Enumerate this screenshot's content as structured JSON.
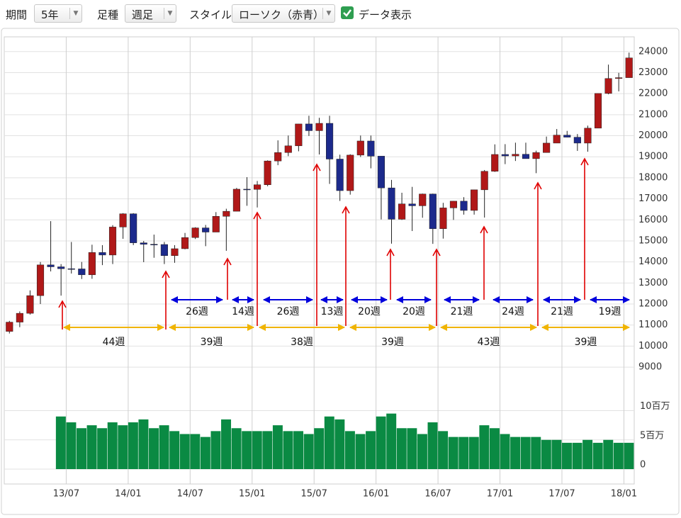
{
  "toolbar": {
    "period_label": "期間",
    "period_value": "5年",
    "bar_label": "足種",
    "bar_value": "週足",
    "style_label": "スタイル",
    "style_value": "ローソク（赤青）",
    "data_display_label": "データ表示"
  },
  "chart_data": {
    "type": "candlestick",
    "x": [
      "13/01",
      "13/02",
      "13/03",
      "13/04",
      "13/05",
      "13/06",
      "13/07",
      "13/08",
      "13/09",
      "13/10",
      "13/11",
      "13/12",
      "14/01",
      "14/02",
      "14/03",
      "14/04",
      "14/05",
      "14/06",
      "14/07",
      "14/08",
      "14/09",
      "14/10",
      "14/11",
      "14/12",
      "15/01",
      "15/02",
      "15/03",
      "15/04",
      "15/05",
      "15/06",
      "15/07",
      "15/08",
      "15/09",
      "15/10",
      "15/11",
      "15/12",
      "16/01",
      "16/02",
      "16/03",
      "16/04",
      "16/05",
      "16/06",
      "16/07",
      "16/08",
      "16/09",
      "16/10",
      "16/11",
      "16/12",
      "17/01",
      "17/02",
      "17/03",
      "17/04",
      "17/05",
      "17/06",
      "17/07",
      "17/08",
      "17/09",
      "17/10",
      "17/11",
      "17/12",
      "18/01"
    ],
    "open": [
      10700,
      11140,
      11560,
      12400,
      13860,
      13770,
      13680,
      13670,
      13390,
      14450,
      14330,
      15660,
      16290,
      14910,
      14840,
      14830,
      14300,
      14630,
      15160,
      15620,
      15420,
      16170,
      16410,
      17460,
      17450,
      17670,
      18800,
      19200,
      19520,
      20560,
      20240,
      20590,
      18890,
      17390,
      19080,
      19750,
      19030,
      17520,
      16030,
      16760,
      16670,
      17230,
      15580,
      16570,
      16890,
      16450,
      17430,
      18310,
      19110,
      19040,
      19120,
      18910,
      19200,
      19650,
      20030,
      19930,
      19650,
      20360,
      22010,
      22720,
      22760
    ],
    "high": [
      11200,
      11650,
      12650,
      14000,
      15940,
      13900,
      14950,
      14000,
      14820,
      14800,
      15750,
      16320,
      16320,
      15000,
      15300,
      14950,
      14800,
      15380,
      15650,
      15760,
      16370,
      16530,
      17520,
      18030,
      17850,
      18830,
      19780,
      20010,
      20560,
      20950,
      20850,
      20950,
      19100,
      19120,
      20010,
      20010,
      19030,
      17900,
      17290,
      17570,
      17250,
      17250,
      16810,
      16900,
      17080,
      17430,
      18370,
      19590,
      19600,
      19670,
      19670,
      19290,
      19960,
      20320,
      20230,
      20080,
      20480,
      22010,
      23380,
      22990,
      23950
    ],
    "low": [
      10600,
      10900,
      11500,
      12000,
      13550,
      12400,
      13450,
      13190,
      13200,
      13850,
      13900,
      15100,
      14800,
      13990,
      14200,
      13900,
      13960,
      14600,
      15090,
      14750,
      15420,
      14530,
      16410,
      16670,
      16590,
      17600,
      18600,
      19030,
      19260,
      19990,
      19110,
      17710,
      16900,
      17200,
      18990,
      18450,
      16020,
      14870,
      16000,
      15470,
      16100,
      14860,
      15110,
      16000,
      16250,
      16250,
      16110,
      18280,
      18650,
      18800,
      18910,
      18220,
      19200,
      19650,
      19920,
      19280,
      19240,
      20360,
      21970,
      22110,
      22760
    ],
    "close": [
      11140,
      11560,
      12400,
      13860,
      13770,
      13680,
      13670,
      13390,
      14450,
      14330,
      15660,
      16290,
      14910,
      14840,
      14830,
      14300,
      14630,
      15160,
      15620,
      15420,
      16170,
      16410,
      17460,
      17450,
      17670,
      18800,
      19200,
      19520,
      20560,
      20240,
      20590,
      18890,
      17390,
      19080,
      19750,
      19030,
      17520,
      16030,
      16760,
      16670,
      17230,
      15580,
      16570,
      16890,
      16450,
      17430,
      18310,
      19110,
      19040,
      19120,
      18910,
      19200,
      19650,
      20030,
      19930,
      19650,
      20360,
      22010,
      22720,
      22760,
      23700
    ],
    "volume": [
      null,
      null,
      null,
      null,
      null,
      9,
      8,
      7,
      7.5,
      7,
      8,
      7.5,
      8,
      8.5,
      7,
      7.5,
      6.5,
      6,
      6,
      5.5,
      6.5,
      8.5,
      7,
      6.5,
      6.5,
      6.5,
      7.5,
      6.5,
      6.5,
      6,
      7,
      9,
      8.5,
      6.5,
      6,
      6.5,
      9,
      9.5,
      7,
      7,
      6,
      8,
      6.5,
      5.5,
      5.5,
      5.5,
      7.5,
      7,
      6,
      5.5,
      5.5,
      5.5,
      5,
      5,
      4.5,
      4.5,
      5,
      4.5,
      5,
      4.5,
      4.5
    ],
    "up_color": "#b01818",
    "down_color": "#1c2a8c",
    "volume_color": "#0a8a43",
    "xlim": [
      "13/01",
      "18/02"
    ],
    "xticks": [
      "13/07",
      "14/01",
      "14/07",
      "15/01",
      "15/07",
      "16/01",
      "16/07",
      "17/01",
      "17/07",
      "18/01"
    ],
    "ylim": [
      8600,
      24700
    ],
    "yticks": [
      9000,
      10000,
      11000,
      12000,
      13000,
      14000,
      15000,
      16000,
      17000,
      18000,
      19000,
      20000,
      21000,
      22000,
      23000,
      24000
    ],
    "y2lim": [
      0,
      16
    ],
    "y2ticks": [
      0,
      {
        "value": 5,
        "label": "5百万"
      },
      {
        "value": 10,
        "label": "10百万"
      }
    ],
    "grid": true,
    "annotations": {
      "blue": [
        "26週",
        "14週",
        "26週",
        "13週",
        "20週",
        "20週",
        "21週",
        "24週",
        "21週",
        "19週"
      ],
      "orange": [
        "44週",
        "39週",
        "38週",
        "39週",
        "43週",
        "39週"
      ]
    }
  }
}
